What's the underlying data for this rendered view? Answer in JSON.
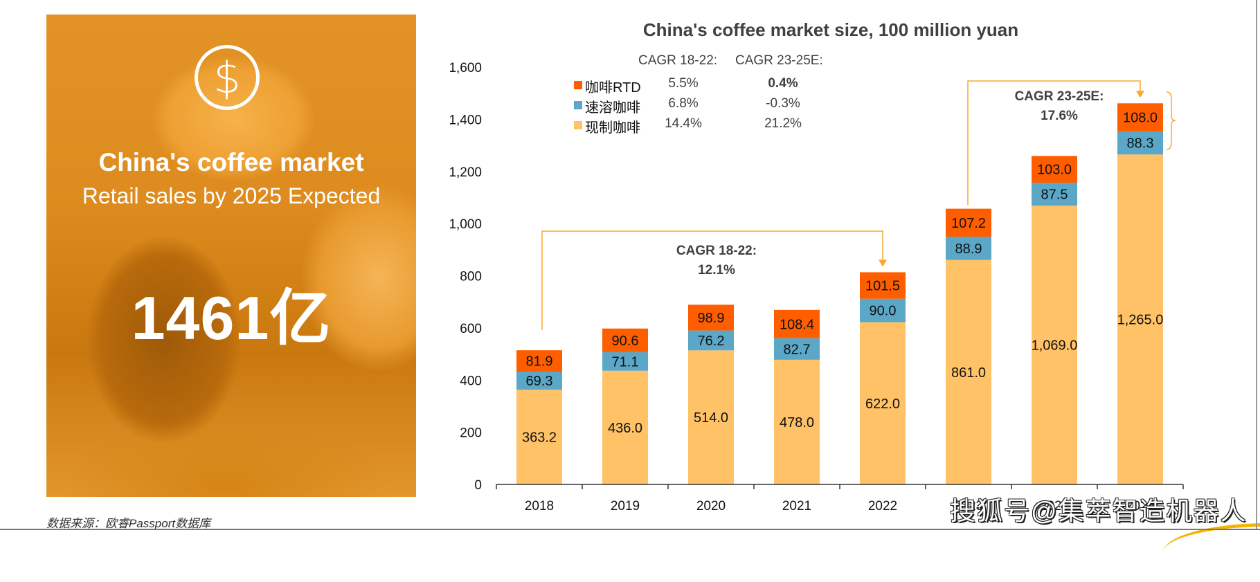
{
  "left_panel": {
    "icon": "dollar-coin-icon",
    "heading": "China's coffee market",
    "subheading": "Retail sales by 2025 Expected",
    "highlight_value": "1461亿"
  },
  "source_note": "数据来源：欧睿Passport数据库",
  "watermark": "搜狐号@集萃智造机器人",
  "chart_data": {
    "type": "bar",
    "stacked": true,
    "title": "China's coffee market size, 100 million yuan",
    "xlabel": "",
    "ylabel": "",
    "ylim": [
      0,
      1600
    ],
    "yticks": [
      0,
      200,
      400,
      600,
      800,
      1000,
      1200,
      1400,
      1600
    ],
    "ytick_labels": [
      "0",
      "200",
      "400",
      "600",
      "800",
      "1,000",
      "1,200",
      "1,400",
      "1,600"
    ],
    "categories": [
      "2018",
      "2019",
      "2020",
      "2021",
      "2022",
      "2023",
      "2024",
      "2025"
    ],
    "series": [
      {
        "name": "现制咖啡",
        "color": "#FFC266",
        "values": [
          363.2,
          436.0,
          514.0,
          478.0,
          622.0,
          861.0,
          1069.0,
          1265.0
        ],
        "labels": [
          "363.2",
          "436.0",
          "514.0",
          "478.0",
          "622.0",
          "861.0",
          "1,069.0",
          "1,265.0"
        ]
      },
      {
        "name": "速溶咖啡",
        "color": "#5BA7C8",
        "values": [
          69.3,
          71.1,
          76.2,
          82.7,
          90.0,
          88.9,
          87.5,
          88.3
        ],
        "labels": [
          "69.3",
          "71.1",
          "76.2",
          "82.7",
          "90.0",
          "88.9",
          "87.5",
          "88.3"
        ]
      },
      {
        "name": "咖啡RTD",
        "color": "#FF5E00",
        "values": [
          81.9,
          90.6,
          98.9,
          108.4,
          101.5,
          107.2,
          103.0,
          108.0
        ],
        "labels": [
          "81.9",
          "90.6",
          "98.9",
          "108.4",
          "101.5",
          "107.2",
          "103.0",
          "108.0"
        ]
      }
    ],
    "legend": {
      "placement": "top-left",
      "headers": [
        "CAGR 18-22:",
        "CAGR 23-25E:"
      ],
      "rows": [
        {
          "name": "咖啡RTD",
          "color": "#FF5E00",
          "cagr_18_22": "5.5%",
          "cagr_23_25e": "0.4%",
          "bold_second": true
        },
        {
          "name": "速溶咖啡",
          "color": "#5BA7C8",
          "cagr_18_22": "6.8%",
          "cagr_23_25e": "-0.3%",
          "bold_second": false
        },
        {
          "name": "现制咖啡",
          "color": "#FFC266",
          "cagr_18_22": "14.4%",
          "cagr_23_25e": "21.2%",
          "bold_second": false
        }
      ]
    },
    "annotations": [
      {
        "text_line1": "CAGR 18-22:",
        "text_line2": "12.1%",
        "from": "2018",
        "to": "2022"
      },
      {
        "text_line1": "CAGR 23-25E:",
        "text_line2": "17.6%",
        "from": "2023",
        "to": "2025"
      }
    ],
    "grid": false,
    "accent_line_color": "#F7A831"
  }
}
